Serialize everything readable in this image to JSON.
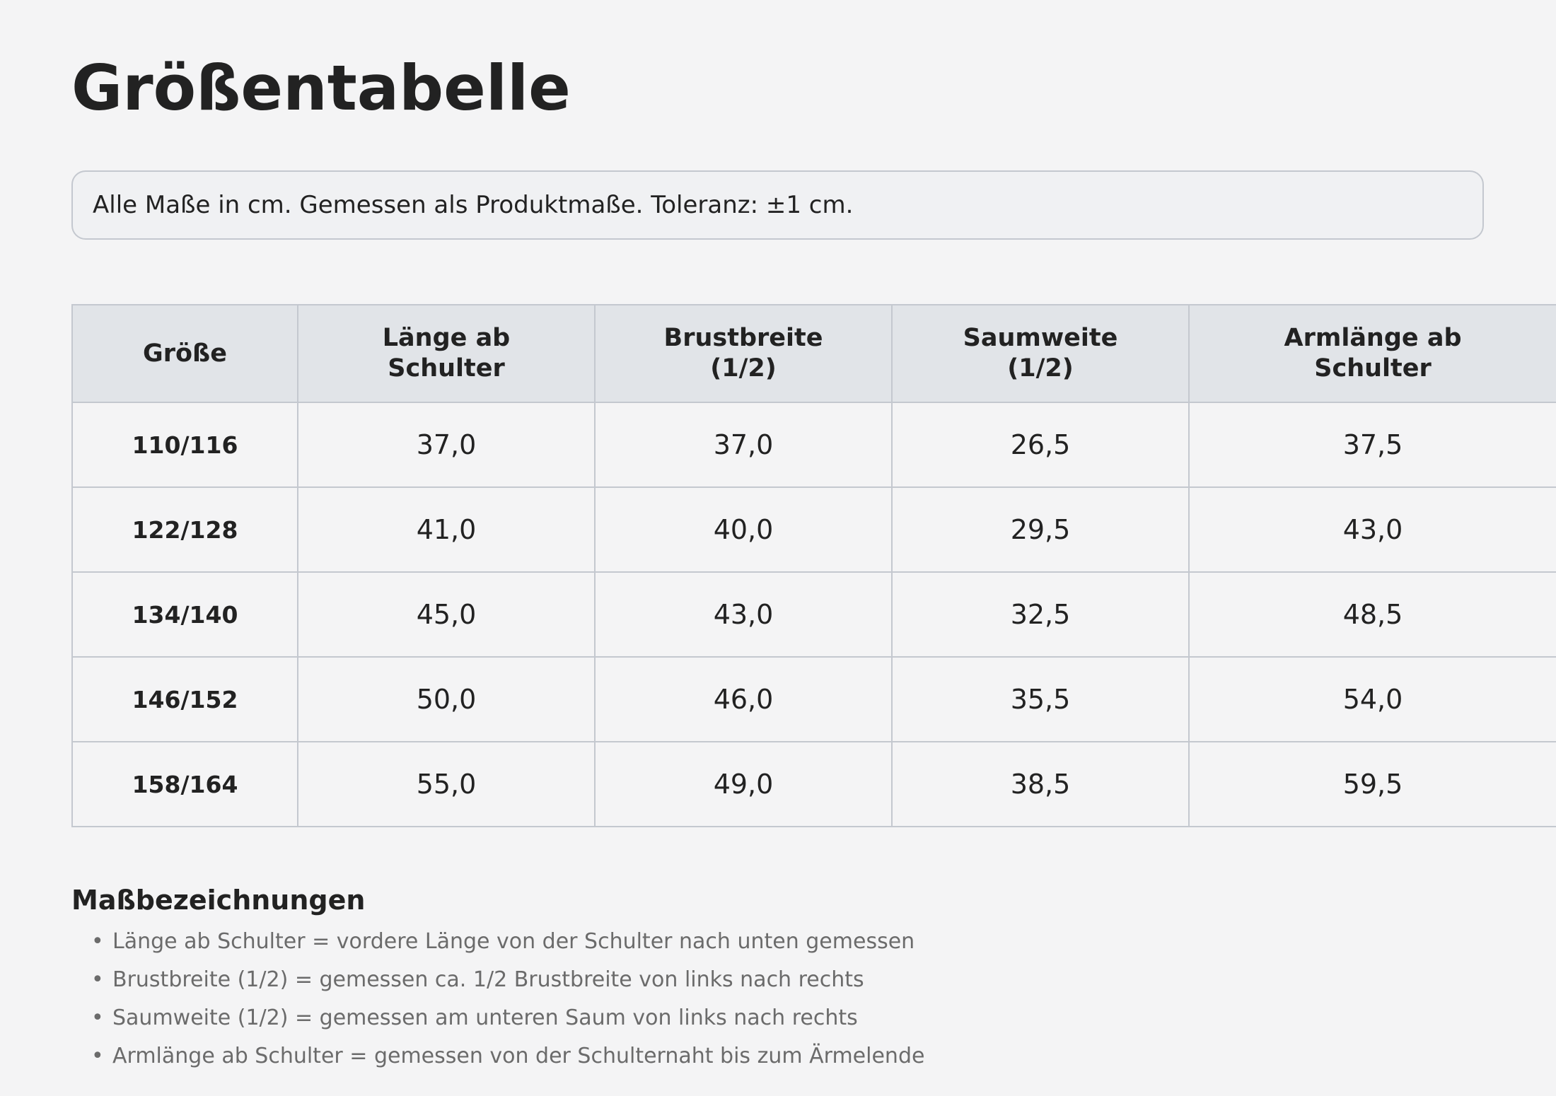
{
  "title": "Größentabelle",
  "note": "Alle Maße in cm. Gemessen als Produktmaße. Toleranz: ±1 cm.",
  "table": {
    "headers": [
      [
        "Größe"
      ],
      [
        "Länge ab",
        "Schulter"
      ],
      [
        "Brustbreite",
        "(1/2)"
      ],
      [
        "Saumweite",
        "(1/2)"
      ],
      [
        "Armlänge ab",
        "Schulter"
      ]
    ],
    "rows": [
      [
        "110/116",
        "37,0",
        "37,0",
        "26,5",
        "37,5"
      ],
      [
        "122/128",
        "41,0",
        "40,0",
        "29,5",
        "43,0"
      ],
      [
        "134/140",
        "45,0",
        "43,0",
        "32,5",
        "48,5"
      ],
      [
        "146/152",
        "50,0",
        "46,0",
        "35,5",
        "54,0"
      ],
      [
        "158/164",
        "55,0",
        "49,0",
        "38,5",
        "59,5"
      ]
    ]
  },
  "legend": {
    "title": "Maßbezeichnungen",
    "bullet": "•",
    "items": [
      "Länge ab Schulter = vordere Länge von der Schulter nach unten gemessen",
      "Brustbreite (1/2) = gemessen ca. 1/2 Brustbreite von links nach rechts",
      "Saumweite (1/2) = gemessen am unteren Saum von links nach rechts",
      "Armlänge ab Schulter = gemessen von der Schulternaht bis zum Ärmelende"
    ]
  }
}
